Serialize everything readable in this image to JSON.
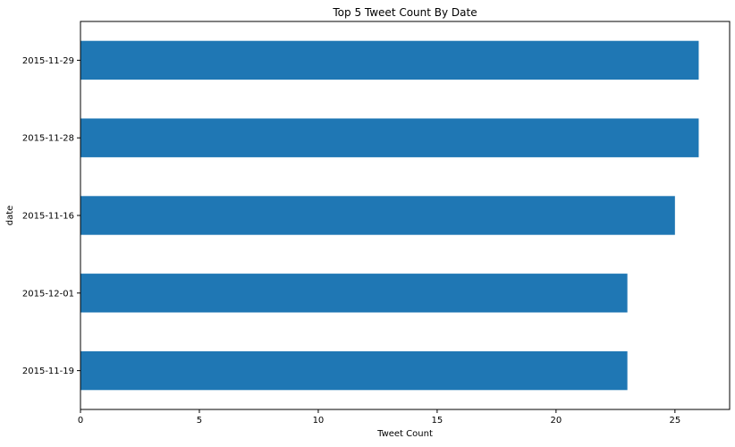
{
  "chart_data": {
    "type": "bar",
    "orientation": "horizontal",
    "title": "Top 5 Tweet Count By Date",
    "xlabel": "Tweet Count",
    "ylabel": "date",
    "categories": [
      "2015-11-29",
      "2015-11-28",
      "2015-11-16",
      "2015-12-01",
      "2015-11-19"
    ],
    "values": [
      26,
      26,
      25,
      23,
      23
    ],
    "xlim": [
      0,
      27.3
    ],
    "xticks": [
      0,
      5,
      10,
      15,
      20,
      25
    ],
    "grid": false,
    "bar_color": "#1f77b4"
  }
}
